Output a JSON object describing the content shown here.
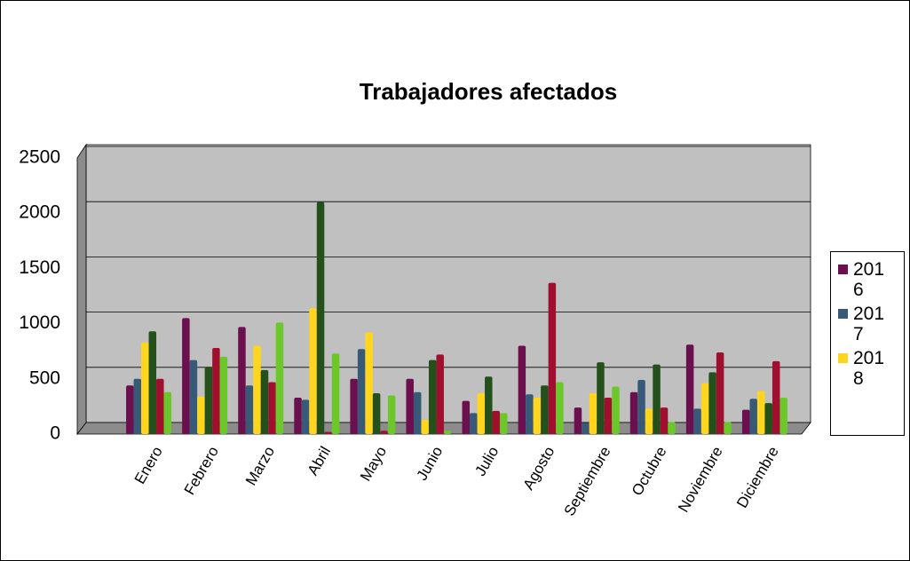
{
  "chart_data": {
    "type": "bar",
    "title": "Trabajadores afectados",
    "categories": [
      "Enero",
      "Febrero",
      "Marzo",
      "Abril",
      "Mayo",
      "Junio",
      "Julio",
      "Agosto",
      "Septiembre",
      "Octubre",
      "Noviembre",
      "Diciembre"
    ],
    "series": [
      {
        "name": "2016",
        "color": "#6b0f4e",
        "values": [
          440,
          1050,
          970,
          330,
          500,
          500,
          300,
          800,
          240,
          380,
          810,
          220
        ]
      },
      {
        "name": "2017",
        "color": "#365a78",
        "values": [
          500,
          670,
          440,
          310,
          770,
          380,
          190,
          360,
          100,
          490,
          230,
          320
        ]
      },
      {
        "name": "2018",
        "color": "#ffd51e",
        "values": [
          830,
          340,
          800,
          1140,
          920,
          130,
          370,
          330,
          370,
          230,
          460,
          390
        ]
      },
      {
        "color": "#24501c",
        "values": [
          930,
          610,
          580,
          2100,
          370,
          670,
          520,
          440,
          650,
          630,
          560,
          280
        ]
      },
      {
        "color": "#a0102e",
        "values": [
          500,
          780,
          470,
          20,
          30,
          720,
          210,
          1370,
          330,
          240,
          740,
          660
        ]
      },
      {
        "color": "#6cc82a",
        "values": [
          380,
          700,
          1010,
          730,
          350,
          30,
          190,
          470,
          430,
          110,
          110,
          330
        ]
      }
    ],
    "ylim": [
      0,
      2500
    ],
    "yticks": [
      0,
      500,
      1000,
      1500,
      2000,
      2500
    ],
    "grid": true,
    "legend": "right"
  }
}
